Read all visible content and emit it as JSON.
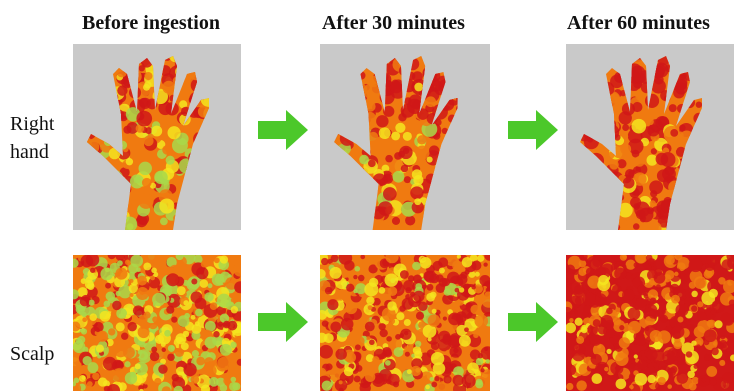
{
  "columns": [
    {
      "title": "Before ingestion"
    },
    {
      "title": "After 30 minutes"
    },
    {
      "title": "After 60 minutes"
    }
  ],
  "rows": [
    {
      "label_line1": "Right",
      "label_line2": "hand"
    },
    {
      "label": "Scalp"
    }
  ],
  "colors": {
    "background_gray": "#c9c9c9",
    "hot_red": "#d01818",
    "warm_orange": "#f07a10",
    "mid_yellow": "#f4e51e",
    "cool_green": "#a9d84a",
    "arrow_green": "#4cc82a"
  },
  "stages": [
    {
      "name": "before",
      "heat_level": 0.35
    },
    {
      "name": "after-30",
      "heat_level": 0.6
    },
    {
      "name": "after-60",
      "heat_level": 0.85
    }
  ]
}
